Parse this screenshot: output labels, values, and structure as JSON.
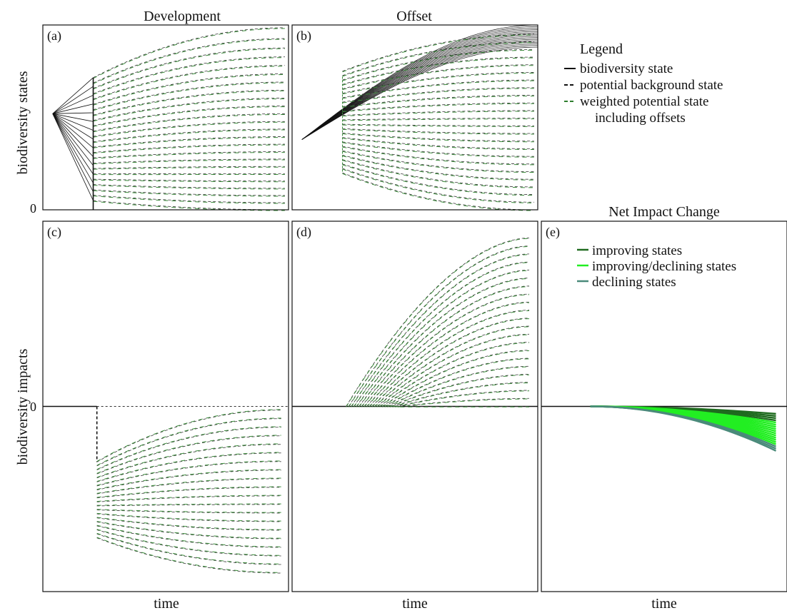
{
  "chart_data": [
    {
      "panel": "a",
      "type": "line",
      "title": "Development",
      "panel_label": "(a)",
      "ylabel": "biodiversity states",
      "ytick": "0",
      "x": {
        "start": 0,
        "end": 1
      },
      "biodiversity_state": {
        "origin": [
          0.04,
          0.52
        ],
        "fan_end_x": 0.205,
        "fan_top": 0.715,
        "fan_bottom": 0.0,
        "line_count": 15
      },
      "development_time": 0.205,
      "background_states": {
        "start_x": 0.205,
        "end_x": 0.985,
        "end_top": 0.985,
        "end_bottom": 0.0,
        "line_count": 24
      }
    },
    {
      "panel": "b",
      "type": "line",
      "title": "Offset",
      "panel_label": "(b)",
      "x": {
        "start": 0,
        "end": 1
      },
      "biodiversity_state": {
        "origin": [
          0.04,
          0.38
        ],
        "end_x": 1.0,
        "end_top": 1.0,
        "end_bottom": 0.88,
        "line_count": 15
      },
      "offset_time": 0.205,
      "background_states": {
        "start_x": 0.205,
        "end_x": 0.985,
        "end_top": 0.95,
        "end_bottom": 0.0,
        "line_count": 24
      }
    },
    {
      "panel": "c",
      "type": "line",
      "panel_label": "(c)",
      "ylabel": "biodiversity impacts",
      "ytick": "0",
      "xlabel": "time",
      "zero_level": 0.0,
      "impact_step_time": 0.22,
      "impact_step_depth": -0.3,
      "impacts": {
        "start_x": 0.22,
        "end_x": 0.97,
        "start_top": -0.3,
        "start_bottom": -0.71,
        "end_top": -0.02,
        "end_bottom": -0.9,
        "line_count": 20
      }
    },
    {
      "panel": "d",
      "type": "line",
      "panel_label": "(d)",
      "xlabel": "time",
      "zero_level": 0.0,
      "impacts": {
        "start_x": 0.22,
        "end_x": 0.965,
        "end_top": 0.91,
        "end_bottom": 0.0,
        "line_count": 22
      }
    },
    {
      "panel": "e",
      "type": "area",
      "title": "Net Impact Change",
      "panel_label": "(e)",
      "xlabel": "time",
      "zero_level": 0.0,
      "net_change": {
        "start_x": 0.2,
        "end_x": 0.955,
        "end_top": -0.04,
        "end_bottom": -0.24,
        "line_count": 18
      },
      "legend": [
        {
          "label": "improving states",
          "color": "#1f6b1f"
        },
        {
          "label": "improving/declining states",
          "color": "#22ee22"
        },
        {
          "label": "declining states",
          "color": "#4a8a7a"
        }
      ]
    }
  ],
  "legend": {
    "title": "Legend",
    "items": [
      {
        "label": "biodiversity state",
        "color": "#111111",
        "style": "solid"
      },
      {
        "label": "potential background state",
        "color": "#111111",
        "style": "dashed"
      },
      {
        "label": "weighted potential state",
        "color": "#2e7d2e",
        "style": "dashed"
      }
    ],
    "continuation": "including offsets"
  },
  "colors": {
    "state": "#111111",
    "background": "#333333",
    "weighted": "#3a8a3a",
    "improving": "#1f6b1f",
    "mixed": "#22ee22",
    "declining": "#4a8a7a"
  }
}
